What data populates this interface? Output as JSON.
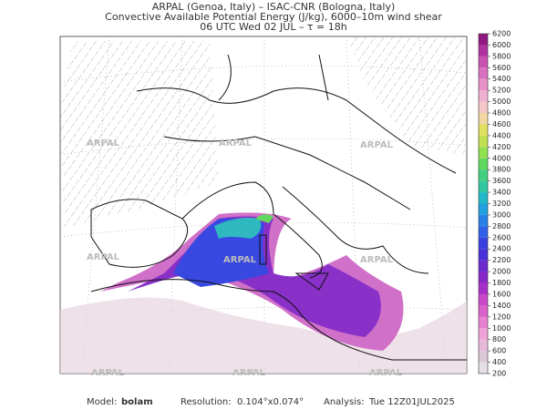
{
  "header": {
    "lines": [
      "ARPAL (Genoa, Italy)  –  ISAC-CNR (Bologna, Italy)",
      "Convective Available Potential Energy (J/kg), 6000–10m wind shear",
      "06 UTC Wed 02 JUL  –  τ = 18h"
    ]
  },
  "colorbar": {
    "ticks": [
      200,
      400,
      600,
      800,
      1000,
      1200,
      1400,
      1600,
      1800,
      2000,
      2200,
      2400,
      2600,
      2800,
      3000,
      3200,
      3400,
      3600,
      3800,
      4000,
      4200,
      4400,
      4600,
      4800,
      5000,
      5200,
      5400,
      5600,
      5800,
      6000,
      6200
    ],
    "colors": [
      "#e6e0e6",
      "#d9c8d6",
      "#e8b8d8",
      "#f0a0d8",
      "#e880d0",
      "#d860c8",
      "#c848c8",
      "#a830c8",
      "#8828c8",
      "#6a2ad0",
      "#4830d8",
      "#3840e0",
      "#3060e8",
      "#2880e8",
      "#20a0e0",
      "#20b8c8",
      "#30c8a0",
      "#40d080",
      "#60d860",
      "#90e050",
      "#c0e050",
      "#e0e060",
      "#f0d8a0",
      "#f4c8c8",
      "#f0b0d0",
      "#e890c8",
      "#d870c0",
      "#c850b0",
      "#b030a0",
      "#901880"
    ]
  },
  "watermark": "ARPAL",
  "footer": {
    "model_label": "Model:",
    "model": "bolam",
    "resolution_label": "Resolution:",
    "resolution": "0.104°x0.074°",
    "analysis_label": "Analysis:",
    "analysis": "Tue 12Z01JUL2025"
  }
}
